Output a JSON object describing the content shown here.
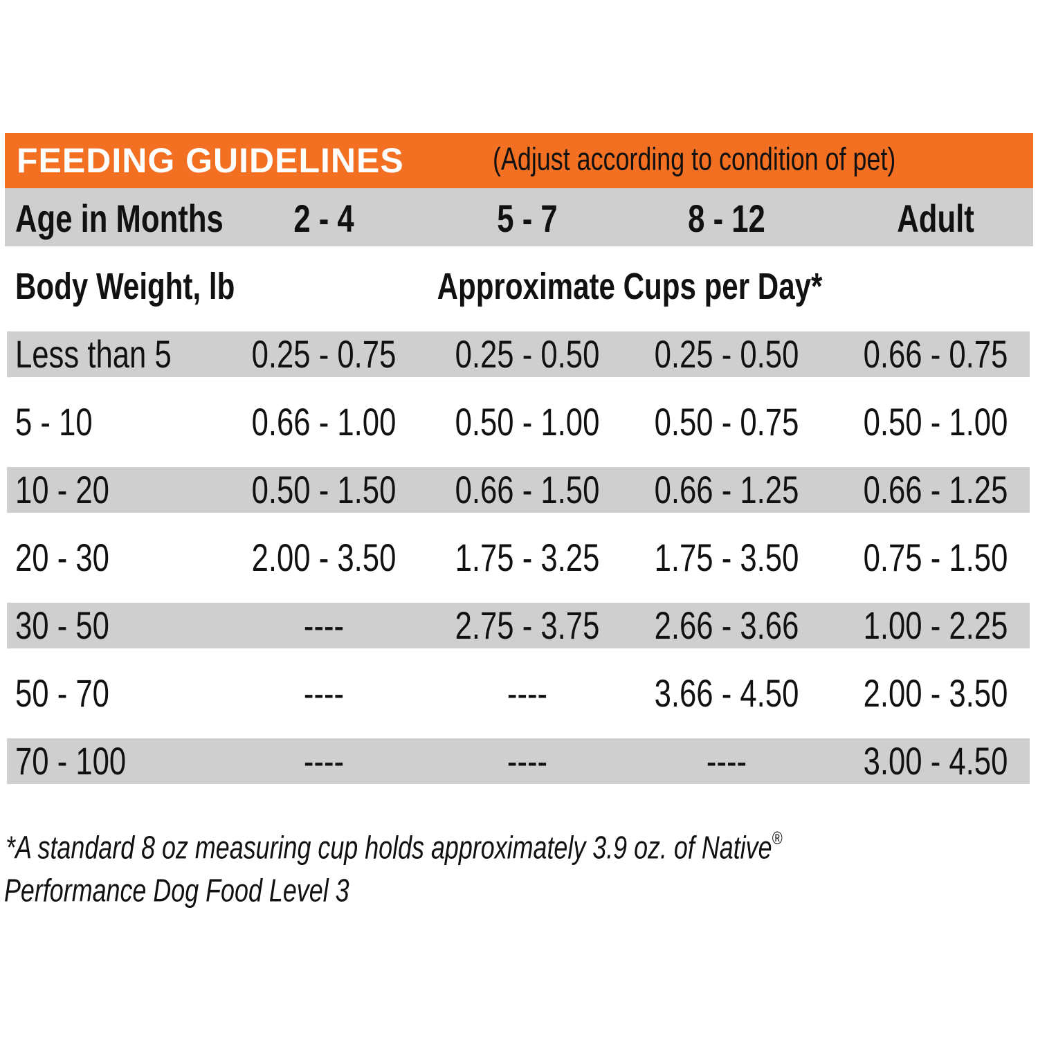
{
  "title": "FEEDING GUIDELINES",
  "subtitle": "(Adjust according to condition of pet)",
  "header": [
    "Age in Months",
    "2 - 4",
    "5 - 7",
    "8 - 12",
    "Adult"
  ],
  "subheader": {
    "left": "Body Weight, lb",
    "center": "Approximate Cups per Day*"
  },
  "table": {
    "rows": [
      [
        "Less than 5",
        "0.25 - 0.75",
        "0.25 - 0.50",
        "0.25 - 0.50",
        "0.66 - 0.75"
      ],
      [
        "5 - 10",
        "0.66 - 1.00",
        "0.50 - 1.00",
        "0.50 - 0.75",
        "0.50 - 1.00"
      ],
      [
        "10 - 20",
        "0.50 - 1.50",
        "0.66 - 1.50",
        "0.66 - 1.25",
        "0.66 - 1.25"
      ],
      [
        "20 - 30",
        "2.00 - 3.50",
        "1.75 - 3.25",
        "1.75 - 3.50",
        "0.75 - 1.50"
      ],
      [
        "30 - 50",
        "----",
        "2.75 - 3.75",
        "2.66 - 3.66",
        "1.00 - 2.25"
      ],
      [
        "50 - 70",
        "----",
        "----",
        "3.66 - 4.50",
        "2.00 - 3.50"
      ],
      [
        "70 - 100",
        "----",
        "----",
        "----",
        "3.00 - 4.50"
      ]
    ]
  },
  "footnote": {
    "line1": "*A standard 8 oz measuring cup holds approximately 3.9 oz. of Native",
    "mark": "®",
    "line2": "Performance Dog Food Level 3"
  }
}
